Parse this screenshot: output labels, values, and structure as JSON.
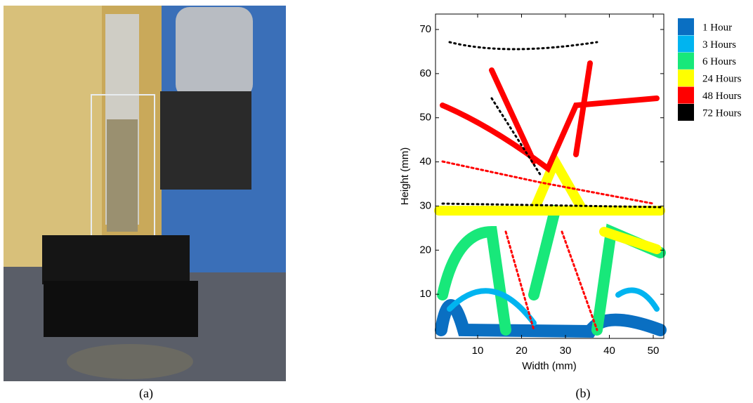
{
  "panel_a": {
    "caption": "(a)"
  },
  "panel_b": {
    "caption": "(b)",
    "x_label": "Width (mm)",
    "y_label": "Height (mm)",
    "xlim": [
      0.4,
      52.4
    ],
    "ylim": [
      0,
      73.5
    ],
    "xticks": [
      10,
      20,
      30,
      40,
      50
    ],
    "yticks": [
      10,
      20,
      30,
      40,
      50,
      60,
      70
    ],
    "legend": [
      {
        "name": "1 Hour",
        "color": "#0a6fc2"
      },
      {
        "name": "3 Hours",
        "color": "#00b4f0"
      },
      {
        "name": "6 Hours",
        "color": "#18e87a"
      },
      {
        "name": "24 Hours",
        "color": "#ffff00"
      },
      {
        "name": "48 Hours",
        "color": "#ff0000"
      },
      {
        "name": "72 Hours",
        "color": "#000000"
      }
    ]
  }
}
